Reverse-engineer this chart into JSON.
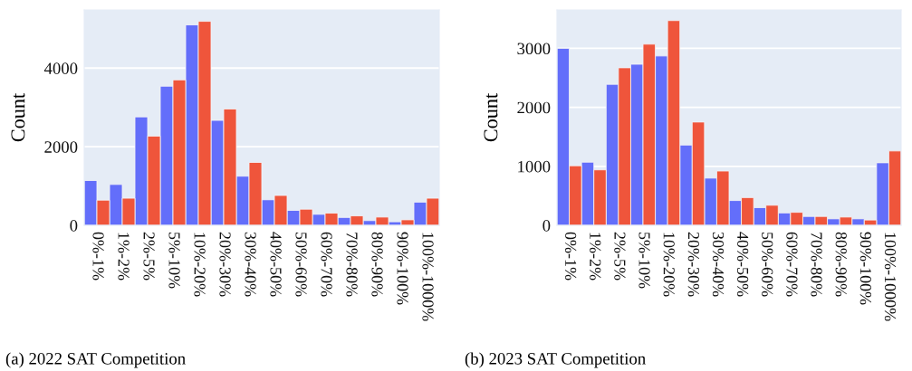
{
  "chart_data": [
    {
      "type": "bar",
      "title": "(a) 2022 SAT Competition",
      "ylabel": "Count",
      "categories": [
        "0%-1%",
        "1%-2%",
        "2%-5%",
        "5%-10%",
        "10%-20%",
        "20%-30%",
        "30%-40%",
        "40%-50%",
        "50%-60%",
        "60%-70%",
        "70%-80%",
        "80%-90%",
        "90%-100%",
        "100%-1000%"
      ],
      "series": [
        {
          "color": "#636efa",
          "values": [
            1140,
            1040,
            2760,
            3540,
            5100,
            2670,
            1250,
            650,
            380,
            280,
            200,
            120,
            90,
            590
          ]
        },
        {
          "color": "#ef553b",
          "values": [
            640,
            690,
            2270,
            3700,
            5190,
            2960,
            1600,
            760,
            410,
            310,
            240,
            210,
            140,
            690
          ]
        }
      ],
      "ylim": [
        0,
        5480
      ],
      "yticks": [
        0,
        2000,
        4000
      ],
      "grid": "y"
    },
    {
      "type": "bar",
      "title": "(b) 2023 SAT Competition",
      "ylabel": "Count",
      "categories": [
        "0%-1%",
        "1%-2%",
        "2%-5%",
        "5%-10%",
        "10%-20%",
        "20%-30%",
        "30%-40%",
        "40%-50%",
        "50%-60%",
        "60%-70%",
        "70%-80%",
        "80%-90%",
        "90%-100%",
        "100%-1000%"
      ],
      "series": [
        {
          "color": "#636efa",
          "values": [
            3000,
            1070,
            2390,
            2730,
            2870,
            1360,
            800,
            420,
            300,
            210,
            150,
            110,
            110,
            1060
          ]
        },
        {
          "color": "#ef553b",
          "values": [
            1010,
            940,
            2670,
            3070,
            3470,
            1750,
            920,
            470,
            340,
            220,
            150,
            140,
            90,
            1260
          ]
        }
      ],
      "ylim": [
        0,
        3650
      ],
      "yticks": [
        0,
        1000,
        2000,
        3000
      ],
      "grid": "y"
    }
  ]
}
